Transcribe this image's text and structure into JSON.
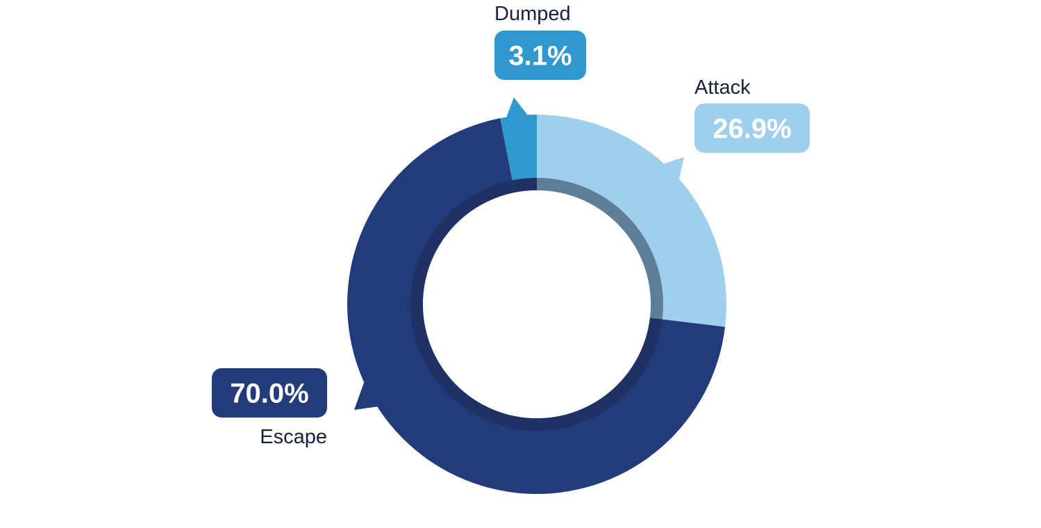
{
  "chart_data": {
    "type": "pie",
    "variant": "donut",
    "categories": [
      "Attack",
      "Escape",
      "Dumped"
    ],
    "values": [
      26.9,
      70.0,
      3.1
    ],
    "value_labels": [
      "26.9%",
      "70.0%",
      "3.1%"
    ],
    "colors": [
      "#a0cfee",
      "#233b7a",
      "#3098cf"
    ],
    "inner_ring_colors": [
      "#5e7d99",
      "#1e3265",
      "#1e3265"
    ],
    "start": "12 o'clock",
    "direction": "clockwise",
    "title": "",
    "legend": "none"
  }
}
